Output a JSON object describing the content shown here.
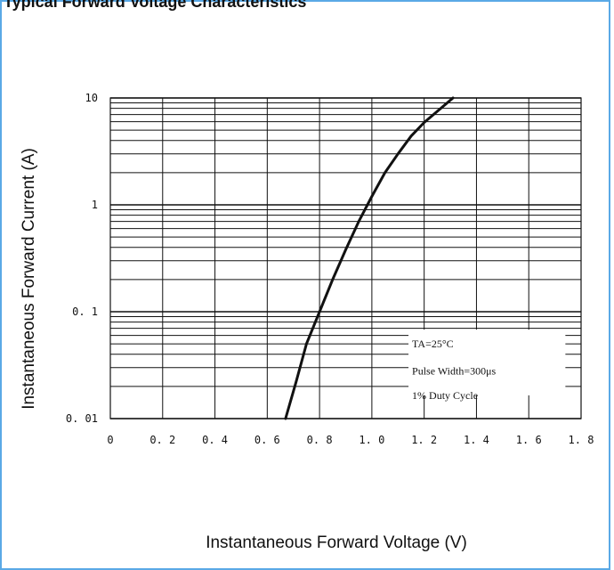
{
  "page": {
    "top_text": "Typical Forward Voltage Characteristics"
  },
  "chart_data": {
    "type": "line",
    "title": "",
    "xlabel": "Instantaneous Forward Voltage (V)",
    "ylabel": "Instantaneous Forward Current (A)",
    "xlim": [
      0,
      1.8
    ],
    "ylim": [
      0.01,
      10
    ],
    "yscale": "log",
    "grid": true,
    "x_ticks": [
      "0",
      "0. 2",
      "0. 4",
      "0. 6",
      "0. 8",
      "1. 0",
      "1. 2",
      "1. 4",
      "1. 6",
      "1. 8"
    ],
    "y_ticks": [
      "10",
      "1",
      "0. 1",
      "0. 01"
    ],
    "series": [
      {
        "x": [
          0.67,
          0.71,
          0.75,
          0.8,
          0.85,
          0.9,
          0.95,
          1.0,
          1.05,
          1.1,
          1.15,
          1.2,
          1.25,
          1.31
        ],
        "y": [
          0.01,
          0.022,
          0.05,
          0.1,
          0.2,
          0.38,
          0.7,
          1.2,
          2.0,
          3.0,
          4.4,
          5.9,
          7.5,
          10
        ]
      }
    ],
    "annotations": [
      "TA=25°C",
      "Pulse Width=300μs",
      "1% Duty Cycle"
    ],
    "colors": {
      "line": "#111111",
      "grid": "#111111",
      "frame": "#5aa9e6"
    }
  }
}
